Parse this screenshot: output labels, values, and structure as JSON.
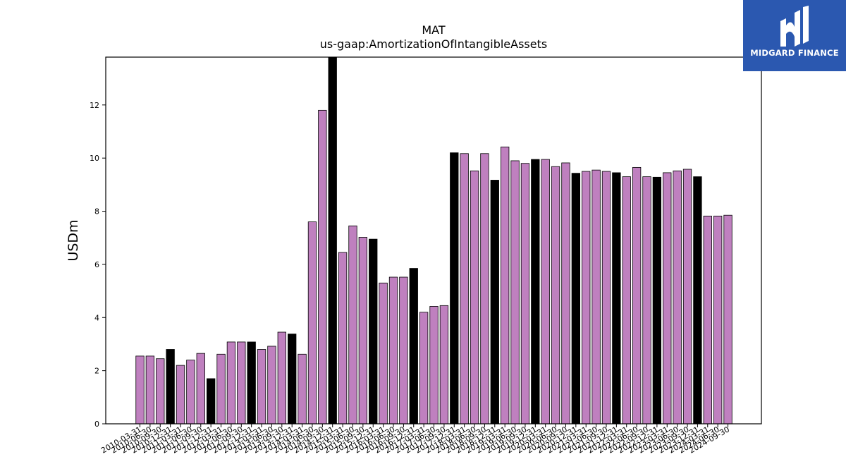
{
  "chart_data": {
    "type": "bar",
    "title": "MAT",
    "subtitle": "us-gaap:AmortizationOfIntangibleAssets",
    "xlabel": "",
    "ylabel": "USDm",
    "ylim": [
      0,
      13.8
    ],
    "yticks": [
      0,
      2,
      4,
      6,
      8,
      10,
      12
    ],
    "grid": false,
    "legend": "none",
    "colors": {
      "quarter": "#bf80bf",
      "annual": "#000000",
      "edge": "#000000"
    },
    "categories": [
      "2010-03-31",
      "2010-06-30",
      "2010-09-30",
      "2010-12-31",
      "2011-03-31",
      "2011-06-30",
      "2011-09-30",
      "2011-12-31",
      "2012-03-31",
      "2012-06-30",
      "2012-09-30",
      "2012-12-31",
      "2013-03-31",
      "2013-06-30",
      "2013-09-30",
      "2013-12-31",
      "2014-03-31",
      "2014-06-30",
      "2014-09-30",
      "2014-12-31",
      "2015-03-31",
      "2015-06-30",
      "2015-09-30",
      "2015-12-31",
      "2016-03-31",
      "2016-06-30",
      "2016-09-30",
      "2016-12-31",
      "2017-03-31",
      "2017-06-30",
      "2017-09-30",
      "2017-12-31",
      "2018-03-31",
      "2018-06-30",
      "2018-09-30",
      "2018-12-31",
      "2019-03-31",
      "2019-06-30",
      "2019-09-30",
      "2019-12-31",
      "2020-03-31",
      "2020-06-30",
      "2020-09-30",
      "2020-12-31",
      "2021-03-31",
      "2021-06-30",
      "2021-09-30",
      "2021-12-31",
      "2022-03-31",
      "2022-06-30",
      "2022-09-30",
      "2022-12-31",
      "2023-03-31",
      "2023-06-30",
      "2023-09-30",
      "2023-12-31",
      "2024-03-31",
      "2024-06-30",
      "2024-09-30"
    ],
    "values": [
      2.55,
      2.55,
      2.45,
      2.8,
      2.2,
      2.4,
      2.65,
      1.7,
      2.62,
      3.08,
      3.08,
      3.08,
      2.8,
      2.92,
      3.45,
      3.38,
      2.62,
      7.6,
      11.8,
      13.8,
      6.45,
      7.45,
      7.02,
      6.95,
      5.3,
      5.52,
      5.52,
      5.85,
      4.2,
      4.42,
      4.45,
      10.2,
      10.17,
      9.52,
      10.17,
      9.17,
      10.42,
      9.9,
      9.8,
      9.95,
      9.95,
      9.68,
      9.82,
      9.43,
      9.5,
      9.55,
      9.5,
      9.45,
      9.3,
      9.65,
      9.3,
      9.28,
      9.45,
      9.52,
      9.58,
      9.3,
      7.82,
      7.82,
      7.85
    ],
    "annual": [
      false,
      false,
      false,
      true,
      false,
      false,
      false,
      true,
      false,
      false,
      false,
      true,
      false,
      false,
      false,
      true,
      false,
      false,
      false,
      true,
      false,
      false,
      false,
      true,
      false,
      false,
      false,
      true,
      false,
      false,
      false,
      true,
      false,
      false,
      false,
      true,
      false,
      false,
      false,
      true,
      false,
      false,
      false,
      true,
      false,
      false,
      false,
      true,
      false,
      false,
      false,
      true,
      false,
      false,
      false,
      true,
      false,
      false,
      false
    ]
  },
  "logo": {
    "text": "MIDGARD FINANCE"
  }
}
